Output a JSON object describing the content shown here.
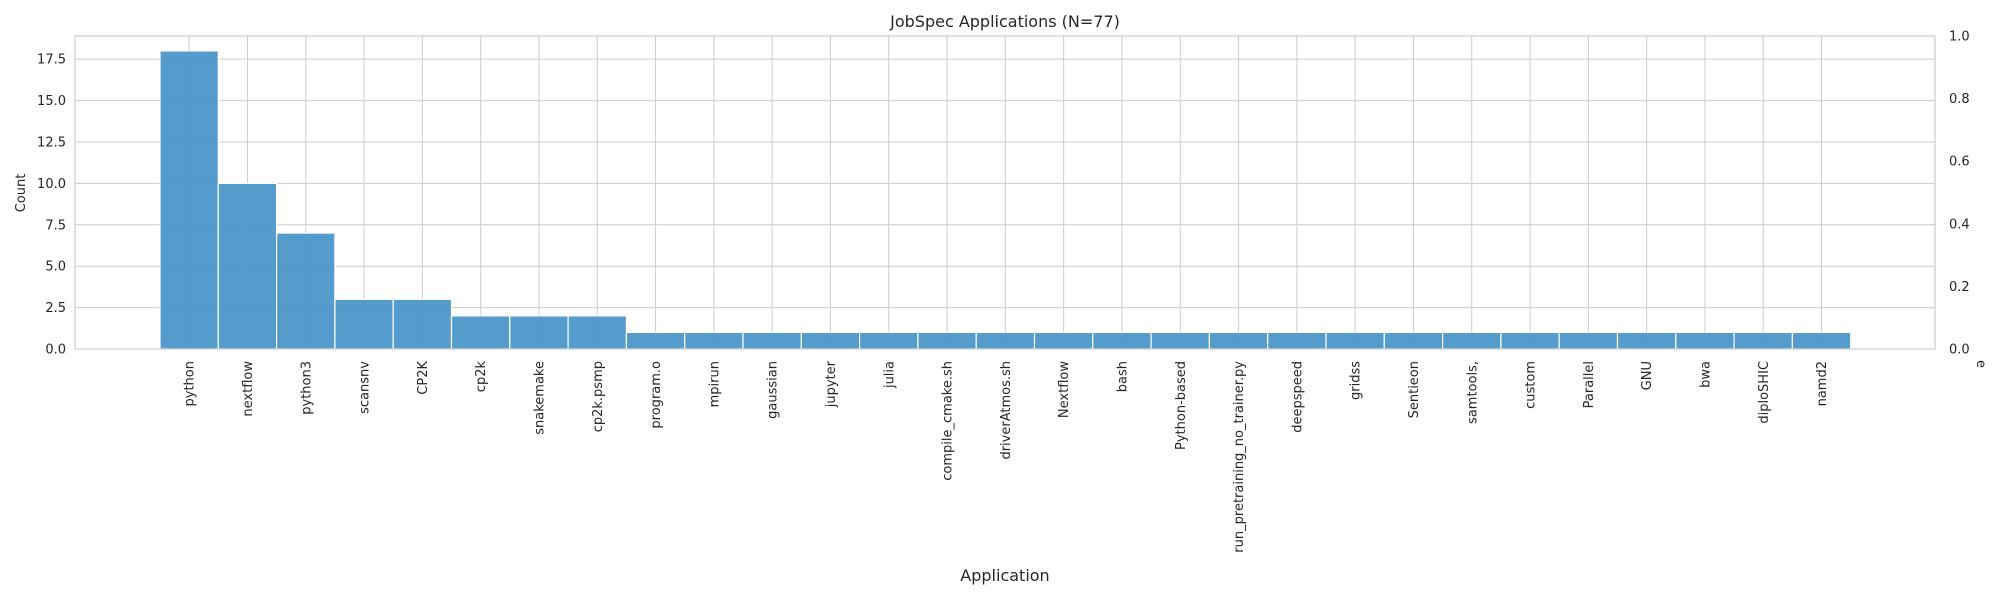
{
  "chart_data": {
    "type": "bar",
    "title": "JobSpec Applications (N=77)",
    "xlabel": "Application",
    "ylabel": "Count",
    "ylim": [
      0,
      18.9
    ],
    "yticks": [
      "0.0",
      "2.5",
      "5.0",
      "7.5",
      "10.0",
      "12.5",
      "15.0",
      "17.5"
    ],
    "y2lim": [
      0,
      1
    ],
    "y2ticks": [
      "0.0",
      "0.2",
      "0.4",
      "0.6",
      "0.8",
      "1.0"
    ],
    "y2_corner_label": "e",
    "grid": true,
    "bar_color": "#4c96c9",
    "categories": [
      "python",
      "nextflow",
      "python3",
      "scansnv",
      "CP2K",
      "cp2k",
      "snakemake",
      "cp2k.psmp",
      "program.o",
      "mpirun",
      "gaussian",
      "jupyter",
      "julia",
      "compile_cmake.sh",
      "driverAtmos.sh",
      "Nextflow",
      "bash",
      "Python-based",
      "run_pretraining_no_trainer.py",
      "deepspeed",
      "gridss",
      "Sentieon",
      "samtools,",
      "custom",
      "Parallel",
      "GNU",
      "bwa",
      "diploSHIC",
      "namd2"
    ],
    "values": [
      18,
      10,
      7,
      3,
      3,
      2,
      2,
      2,
      1,
      1,
      1,
      1,
      1,
      1,
      1,
      1,
      1,
      1,
      1,
      1,
      1,
      1,
      1,
      1,
      1,
      1,
      1,
      1,
      1
    ]
  }
}
